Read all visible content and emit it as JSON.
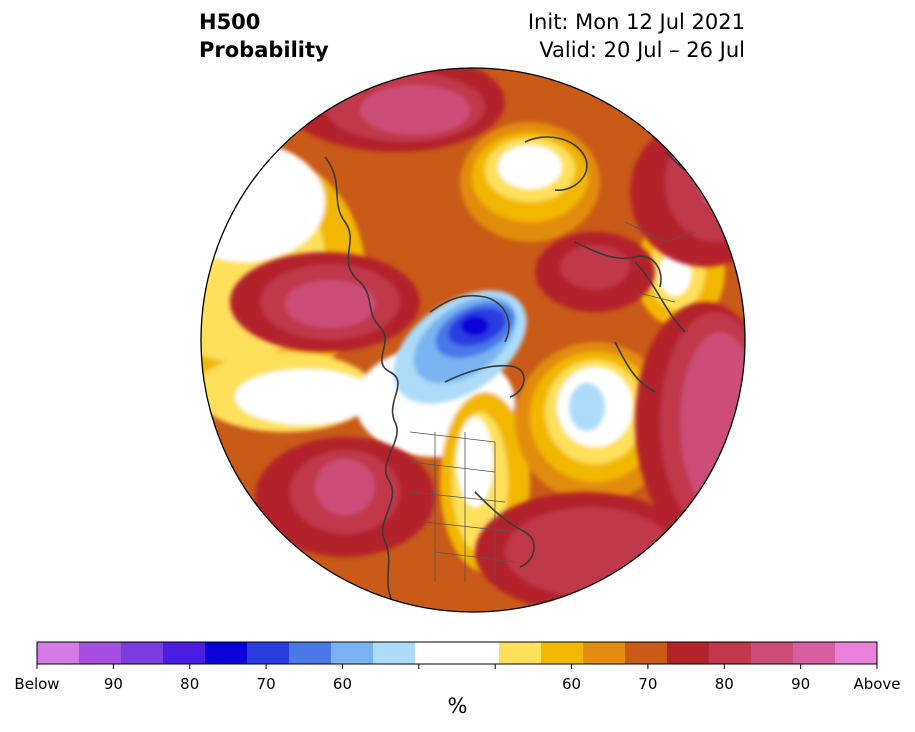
{
  "title": {
    "variable": "H500",
    "subtitle": "Probability",
    "init": "Init: Mon 12 Jul 2021",
    "valid": "Valid: 20 Jul – 26 Jul"
  },
  "colorbar": {
    "units": "%",
    "colors": [
      "#d67ae8",
      "#a44fe0",
      "#7a3ee0",
      "#4a1ee0",
      "#0a00d8",
      "#2a3ce0",
      "#4a78e8",
      "#7ab4f0",
      "#acdcfa",
      "#ffffff",
      "#ffffff",
      "#fee05a",
      "#f2b800",
      "#e28c10",
      "#c95a18",
      "#b3242a",
      "#c0384a",
      "#cc4e78",
      "#d85ea4",
      "#e880dc"
    ],
    "tick_labels": [
      "Below",
      "90",
      "80",
      "70",
      "60",
      "",
      "",
      "60",
      "70",
      "80",
      "90",
      "Above"
    ]
  },
  "map": {
    "projection": "polar stereographic (north pole)",
    "regions": [
      {
        "name": "above-north-pacific",
        "category": "above",
        "peak": "90"
      },
      {
        "name": "above-western-north-atlantic",
        "category": "above",
        "peak": "90"
      },
      {
        "name": "above-eastern-europe",
        "category": "above",
        "peak": "90"
      },
      {
        "name": "above-central-siberia",
        "category": "above",
        "peak": "90"
      },
      {
        "name": "above-north-africa",
        "category": "above",
        "peak": "90"
      },
      {
        "name": "below-beaufort-sea",
        "category": "below",
        "peak": "80"
      },
      {
        "name": "below-greenland-sea",
        "category": "below",
        "peak": "60"
      }
    ]
  }
}
